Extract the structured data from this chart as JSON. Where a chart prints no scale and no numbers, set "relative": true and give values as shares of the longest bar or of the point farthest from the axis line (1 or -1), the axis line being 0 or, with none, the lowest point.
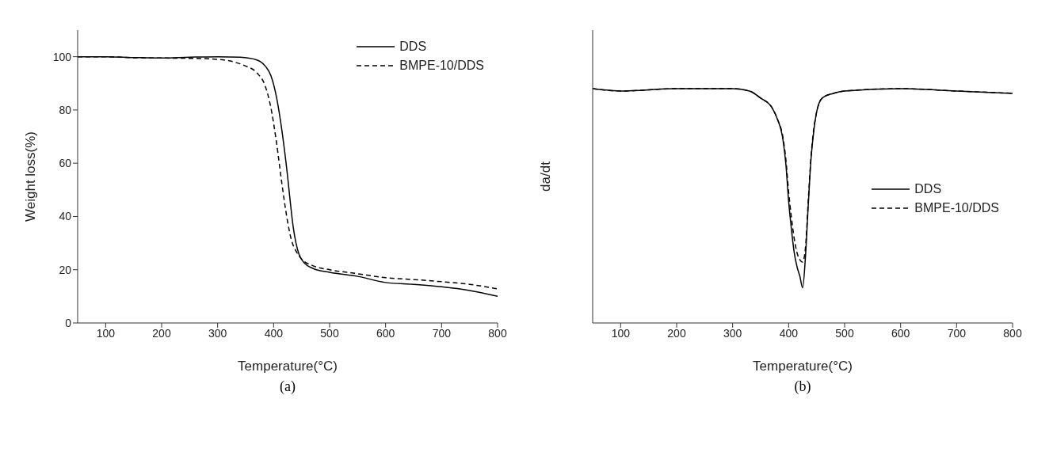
{
  "chart_data": [
    {
      "type": "line",
      "xlabel": "Temperature(°C)",
      "ylabel": "Weight loss(%)",
      "xlim": [
        50,
        800
      ],
      "xticks": [
        100,
        200,
        300,
        400,
        500,
        600,
        700,
        800
      ],
      "ylim": [
        0,
        110
      ],
      "yticks": [
        0,
        20,
        40,
        60,
        80,
        100
      ],
      "legend": "top right",
      "annotations": [
        "(a)"
      ],
      "series": [
        {
          "name": "DDS",
          "color": "#000000",
          "line_style": "solid",
          "x": [
            50,
            100,
            150,
            200,
            250,
            300,
            340,
            370,
            385,
            395,
            405,
            415,
            425,
            430,
            435,
            440,
            445,
            455,
            470,
            500,
            550,
            600,
            650,
            700,
            750,
            800
          ],
          "values": [
            100,
            100,
            99.7,
            99.5,
            99.8,
            100,
            99.8,
            98.8,
            96.5,
            93,
            85,
            72,
            55,
            45,
            36,
            30,
            26,
            22.5,
            20.5,
            19,
            17.5,
            15.2,
            14.5,
            13.6,
            12.2,
            10
          ]
        },
        {
          "name": "BMPE-10/DDS",
          "color": "#000000",
          "line_style": "dashed",
          "x": [
            50,
            100,
            150,
            200,
            250,
            300,
            330,
            350,
            370,
            385,
            395,
            405,
            415,
            425,
            432,
            440,
            450,
            470,
            500,
            550,
            600,
            650,
            700,
            750,
            800
          ],
          "values": [
            100,
            100,
            99.6,
            99.5,
            99.4,
            99,
            98,
            96.5,
            94,
            89,
            81,
            68,
            52,
            38,
            31,
            27,
            24,
            21.5,
            20,
            18.5,
            17,
            16.3,
            15.5,
            14.5,
            12.8
          ]
        }
      ]
    },
    {
      "type": "line",
      "xlabel": "Temperature(°C)",
      "ylabel": "da/dt",
      "xlim": [
        50,
        800
      ],
      "xticks": [
        100,
        200,
        300,
        400,
        500,
        600,
        700,
        800
      ],
      "relative": true,
      "legend": "right",
      "annotations": [
        "(b)"
      ],
      "series": [
        {
          "name": "DDS",
          "color": "#000000",
          "line_style": "solid",
          "x": [
            50,
            100,
            200,
            300,
            330,
            350,
            370,
            380,
            390,
            395,
            400,
            405,
            410,
            415,
            420,
            425,
            430,
            435,
            440,
            445,
            450,
            460,
            480,
            500,
            600,
            700,
            800
          ],
          "values": [
            1.0,
            0.99,
            1.0,
            1.0,
            0.99,
            0.96,
            0.92,
            0.87,
            0.78,
            0.68,
            0.52,
            0.4,
            0.3,
            0.24,
            0.2,
            0.15,
            0.28,
            0.5,
            0.7,
            0.82,
            0.9,
            0.96,
            0.98,
            0.99,
            1.0,
            0.99,
            0.98
          ]
        },
        {
          "name": "BMPE-10/DDS",
          "color": "#000000",
          "line_style": "dashed",
          "x": [
            50,
            100,
            200,
            300,
            330,
            350,
            370,
            380,
            390,
            395,
            400,
            405,
            410,
            415,
            420,
            425,
            430,
            435,
            440,
            445,
            450,
            460,
            480,
            500,
            600,
            700,
            800
          ],
          "values": [
            1.0,
            0.99,
            1.0,
            1.0,
            0.99,
            0.96,
            0.92,
            0.87,
            0.79,
            0.7,
            0.56,
            0.45,
            0.36,
            0.3,
            0.27,
            0.26,
            0.32,
            0.52,
            0.71,
            0.83,
            0.9,
            0.96,
            0.98,
            0.99,
            1.0,
            0.99,
            0.98
          ]
        }
      ]
    }
  ]
}
